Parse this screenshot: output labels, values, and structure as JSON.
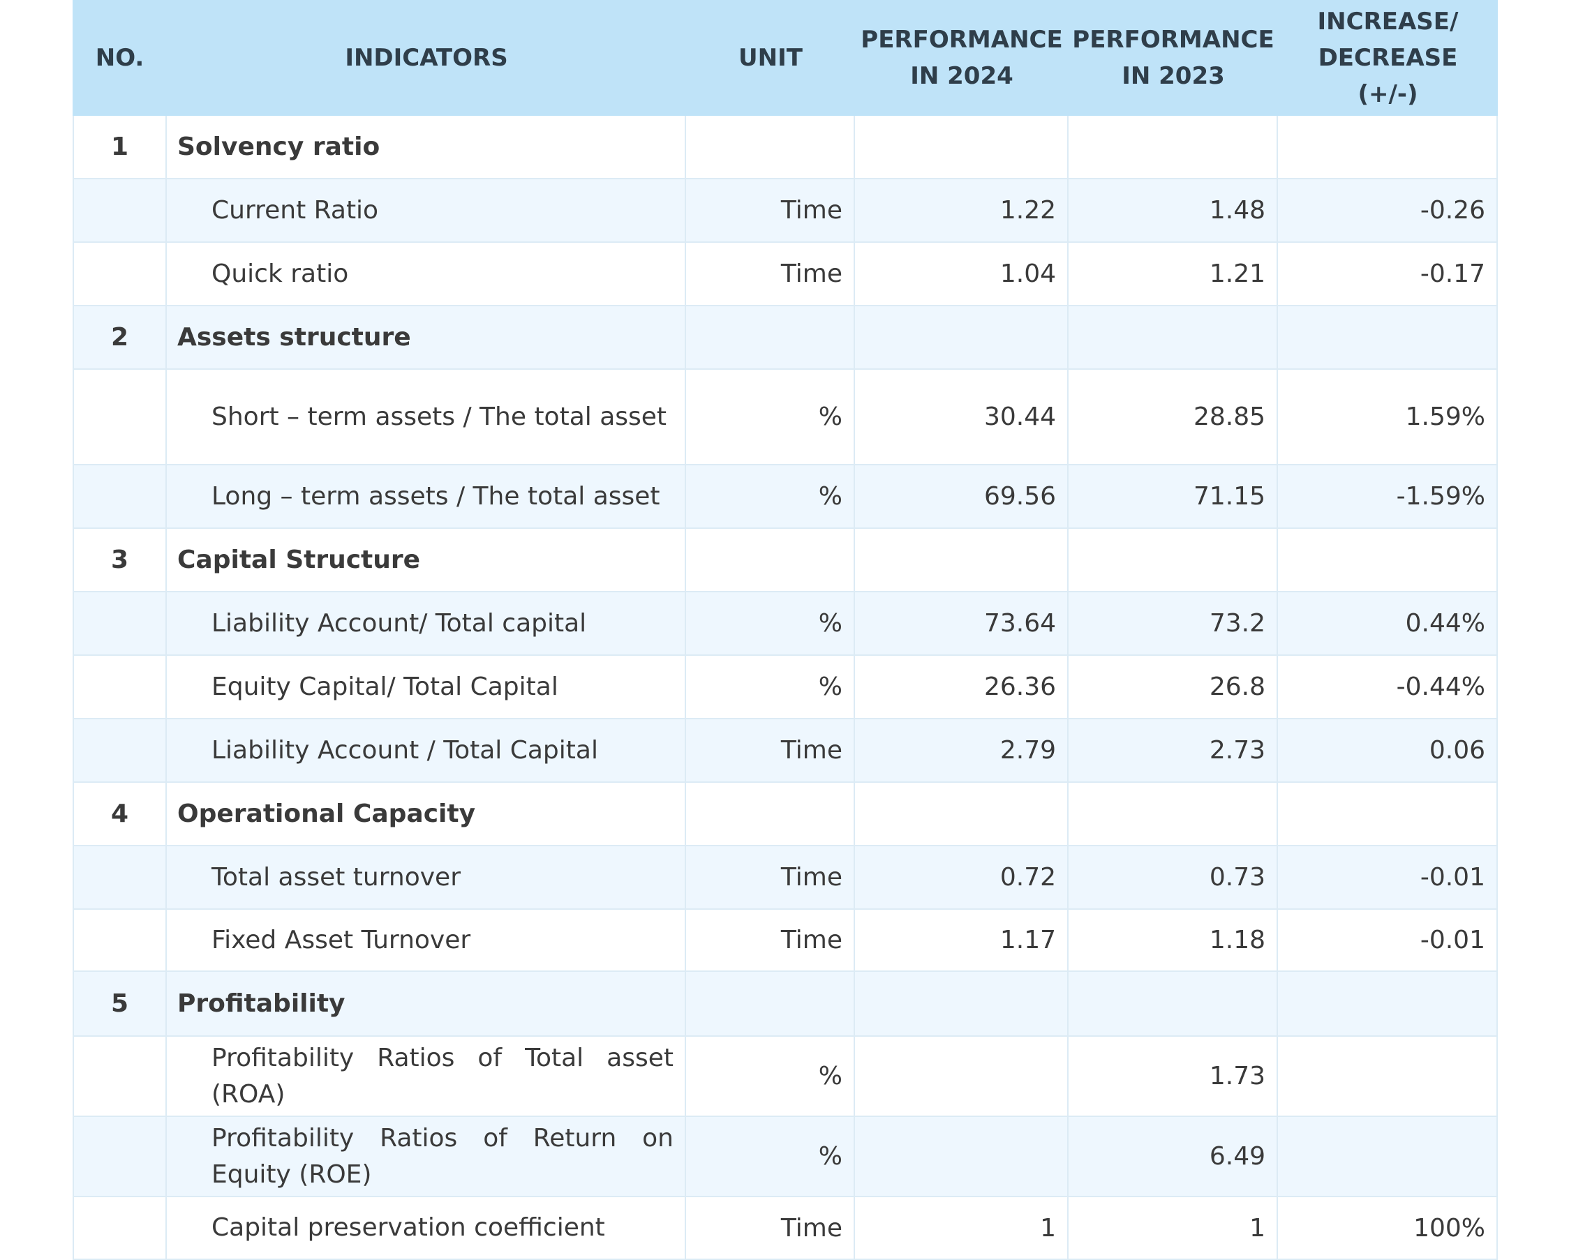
{
  "headers": {
    "no": "NO.",
    "indicators": "INDICATORS",
    "unit": "UNIT",
    "perf_2024": "PERFORMANCE\nIN 2024",
    "perf_2023": "PERFORMANCE\nIN 2023",
    "change": "INCREASE/\nDECREASE\n(+/-)"
  },
  "rows": [
    {
      "no": "1",
      "name": "Solvency ratio",
      "unit": "",
      "y2024": "",
      "y2023": "",
      "change": ""
    },
    {
      "no": "",
      "name": "Current Ratio",
      "unit": "Time",
      "y2024": "1.22",
      "y2023": "1.48",
      "change": "-0.26"
    },
    {
      "no": "",
      "name": "Quick ratio",
      "unit": "Time",
      "y2024": "1.04",
      "y2023": "1.21",
      "change": "-0.17"
    },
    {
      "no": "2",
      "name": "Assets structure",
      "unit": "",
      "y2024": "",
      "y2023": "",
      "change": ""
    },
    {
      "no": "",
      "name": "Short – term assets / The total asset",
      "unit": "%",
      "y2024": "30.44",
      "y2023": "28.85",
      "change": "1.59%"
    },
    {
      "no": "",
      "name": "Long – term assets / The total asset",
      "unit": "%",
      "y2024": "69.56",
      "y2023": "71.15",
      "change": "-1.59%"
    },
    {
      "no": "3",
      "name": "Capital Structure",
      "unit": "",
      "y2024": "",
      "y2023": "",
      "change": ""
    },
    {
      "no": "",
      "name": "Liability Account/ Total capital",
      "unit": "%",
      "y2024": "73.64",
      "y2023": "73.2",
      "change": "0.44%"
    },
    {
      "no": "",
      "name": "Equity Capital/ Total Capital",
      "unit": "%",
      "y2024": "26.36",
      "y2023": "26.8",
      "change": "-0.44%"
    },
    {
      "no": "",
      "name": "Liability Account / Total Capital",
      "unit": "Time",
      "y2024": "2.79",
      "y2023": "2.73",
      "change": "0.06"
    },
    {
      "no": "4",
      "name": "Operational Capacity",
      "unit": "",
      "y2024": "",
      "y2023": "",
      "change": ""
    },
    {
      "no": "",
      "name": "Total asset turnover",
      "unit": "Time",
      "y2024": "0.72",
      "y2023": "0.73",
      "change": "-0.01"
    },
    {
      "no": "",
      "name": "Fixed Asset Turnover",
      "unit": "Time",
      "y2024": "1.17",
      "y2023": "1.18",
      "change": "-0.01"
    },
    {
      "no": "5",
      "name": "Profitability",
      "unit": "",
      "y2024": "",
      "y2023": "",
      "change": ""
    },
    {
      "no": "",
      "name": "Profitability Ratios of Total asset (ROA)",
      "unit": "%",
      "y2024": "",
      "y2023": "1.73",
      "change": ""
    },
    {
      "no": "",
      "name": "Profitability Ratios of Return on Equity (ROE)",
      "unit": "%",
      "y2024": "",
      "y2023": "6.49",
      "change": ""
    },
    {
      "no": "",
      "name": "Capital preservation coefficient",
      "unit": "Time",
      "y2024": "1",
      "y2023": "1",
      "change": "100%"
    }
  ]
}
